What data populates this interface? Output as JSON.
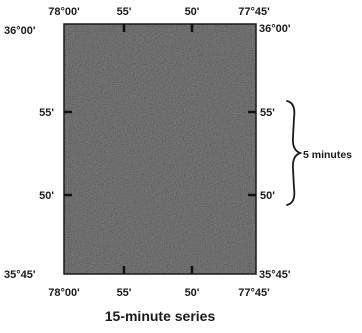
{
  "map": {
    "fill_color": "#7d7d7d",
    "frame_color": "#1a1a1a",
    "top_labels": [
      "78°00'",
      "55'",
      "50'",
      "77°45'"
    ],
    "bottom_labels": [
      "78°00'",
      "55'",
      "50'",
      "77°45'"
    ],
    "left_labels": [
      "36°00'",
      "55'",
      "50'",
      "35°45'"
    ],
    "right_labels": [
      "36°00'",
      "55'",
      "50'",
      "35°45'"
    ]
  },
  "interval": {
    "label": "5 minutes"
  },
  "caption": "15-minute series"
}
